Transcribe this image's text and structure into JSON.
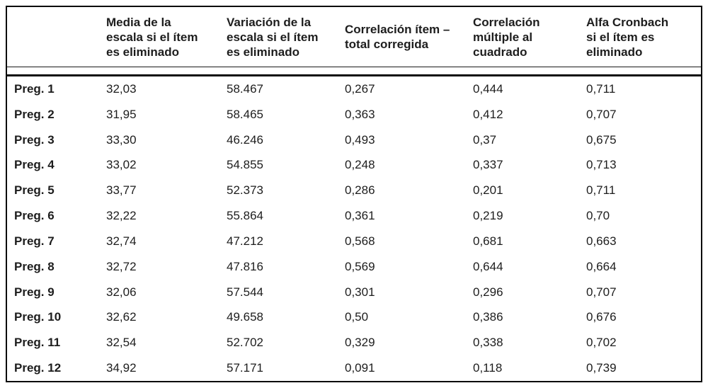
{
  "colors": {
    "background": "#ffffff",
    "text": "#1d1d1d",
    "border": "#0a0a0a"
  },
  "table": {
    "columns": {
      "label": "",
      "media": "Media de la\nescala si el ítem\nes eliminado",
      "variacion": "Variación de la\nescala si el ítem\nes eliminado",
      "corr_item_total": "Correlación ítem –\ntotal corregida",
      "corr_multiple": "Correlación\nmúltiple al\ncuadrado",
      "alfa": "Alfa Cronbach\nsi el ítem es\neliminado"
    },
    "rows": [
      {
        "label": "Preg. 1",
        "media": "32,03",
        "variacion": "58.467",
        "corr_item_total": "0,267",
        "corr_multiple": "0,444",
        "alfa": "0,711"
      },
      {
        "label": "Preg. 2",
        "media": "31,95",
        "variacion": "58.465",
        "corr_item_total": "0,363",
        "corr_multiple": "0,412",
        "alfa": "0,707"
      },
      {
        "label": "Preg. 3",
        "media": "33,30",
        "variacion": "46.246",
        "corr_item_total": "0,493",
        "corr_multiple": "0,37",
        "alfa": "0,675"
      },
      {
        "label": "Preg. 4",
        "media": "33,02",
        "variacion": "54.855",
        "corr_item_total": "0,248",
        "corr_multiple": "0,337",
        "alfa": "0,713"
      },
      {
        "label": "Preg. 5",
        "media": "33,77",
        "variacion": "52.373",
        "corr_item_total": "0,286",
        "corr_multiple": "0,201",
        "alfa": "0,711"
      },
      {
        "label": "Preg. 6",
        "media": "32,22",
        "variacion": "55.864",
        "corr_item_total": "0,361",
        "corr_multiple": "0,219",
        "alfa": "0,70"
      },
      {
        "label": "Preg. 7",
        "media": "32,74",
        "variacion": "47.212",
        "corr_item_total": "0,568",
        "corr_multiple": "0,681",
        "alfa": "0,663"
      },
      {
        "label": "Preg. 8",
        "media": "32,72",
        "variacion": "47.816",
        "corr_item_total": "0,569",
        "corr_multiple": "0,644",
        "alfa": "0,664"
      },
      {
        "label": "Preg. 9",
        "media": "32,06",
        "variacion": "57.544",
        "corr_item_total": "0,301",
        "corr_multiple": "0,296",
        "alfa": "0,707"
      },
      {
        "label": "Preg. 10",
        "media": "32,62",
        "variacion": "49.658",
        "corr_item_total": "0,50",
        "corr_multiple": "0,386",
        "alfa": "0,676"
      },
      {
        "label": "Preg. 11",
        "media": "32,54",
        "variacion": "52.702",
        "corr_item_total": "0,329",
        "corr_multiple": "0,338",
        "alfa": "0,702"
      },
      {
        "label": "Preg. 12",
        "media": "34,92",
        "variacion": "57.171",
        "corr_item_total": "0,091",
        "corr_multiple": "0,118",
        "alfa": "0,739"
      }
    ]
  }
}
